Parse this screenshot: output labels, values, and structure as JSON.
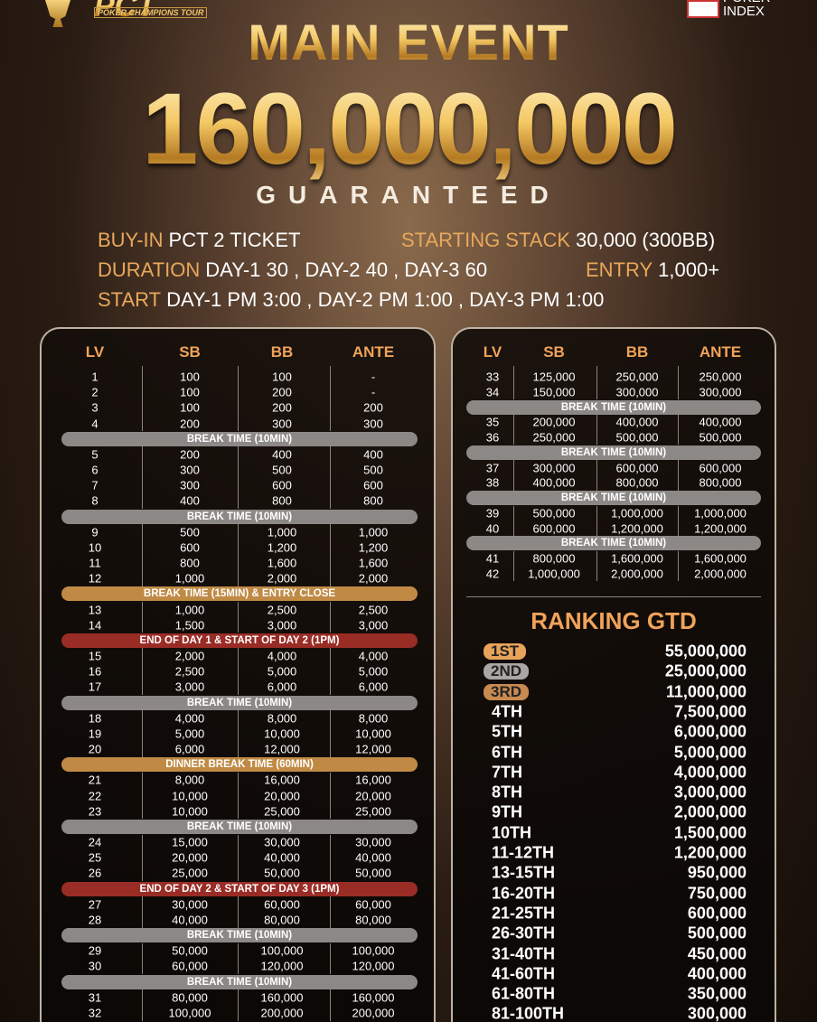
{
  "header": {
    "logo_left": "PCT",
    "logo_left_sub": "POKER CHAMPIONS TOUR",
    "logo_right": "POKER INDEX",
    "title": "MAIN EVENT",
    "amount": "160,000,000",
    "subtitle": "GUARANTEED"
  },
  "info": [
    {
      "label": "BUY-IN",
      "value": "PCT 2 TICKET"
    },
    {
      "label": "STARTING STACK",
      "value": "30,000 (300BB)"
    },
    {
      "label": "DURATION",
      "value": "DAY-1 30 , DAY-2 40 , DAY-3 60"
    },
    {
      "label": "ENTRY",
      "value": "1,000+"
    },
    {
      "label": "START",
      "value": "DAY-1 PM 3:00 , DAY-2 PM 1:00 , DAY-3 PM 1:00"
    }
  ],
  "left_table": {
    "columns": [
      "LV",
      "SB",
      "BB",
      "ANTE"
    ],
    "rows": [
      [
        "1",
        "100",
        "100",
        "-"
      ],
      [
        "2",
        "100",
        "200",
        "-"
      ],
      [
        "3",
        "100",
        "200",
        "200"
      ],
      [
        "4",
        "200",
        "300",
        "300"
      ],
      {
        "text": "BREAK TIME (10MIN)",
        "color": "#8c8885"
      },
      [
        "5",
        "200",
        "400",
        "400"
      ],
      [
        "6",
        "300",
        "500",
        "500"
      ],
      [
        "7",
        "300",
        "600",
        "600"
      ],
      [
        "8",
        "400",
        "800",
        "800"
      ],
      {
        "text": "BREAK TIME (10MIN)",
        "color": "#8c8885"
      },
      [
        "9",
        "500",
        "1,000",
        "1,000"
      ],
      [
        "10",
        "600",
        "1,200",
        "1,200"
      ],
      [
        "11",
        "800",
        "1,600",
        "1,600"
      ],
      [
        "12",
        "1,000",
        "2,000",
        "2,000"
      ],
      {
        "text": "BREAK TIME (15MIN) & ENTRY CLOSE",
        "color": "#c08a45"
      },
      [
        "13",
        "1,000",
        "2,500",
        "2,500"
      ],
      [
        "14",
        "1,500",
        "3,000",
        "3,000"
      ],
      {
        "text": "END OF DAY 1 & START OF DAY 2 (1PM)",
        "color": "#9a2c26"
      },
      [
        "15",
        "2,000",
        "4,000",
        "4,000"
      ],
      [
        "16",
        "2,500",
        "5,000",
        "5,000"
      ],
      [
        "17",
        "3,000",
        "6,000",
        "6,000"
      ],
      {
        "text": "BREAK TIME (10MIN)",
        "color": "#8c8885"
      },
      [
        "18",
        "4,000",
        "8,000",
        "8,000"
      ],
      [
        "19",
        "5,000",
        "10,000",
        "10,000"
      ],
      [
        "20",
        "6,000",
        "12,000",
        "12,000"
      ],
      {
        "text": "DINNER BREAK TIME (60MIN)",
        "color": "#c08a45"
      },
      [
        "21",
        "8,000",
        "16,000",
        "16,000"
      ],
      [
        "22",
        "10,000",
        "20,000",
        "20,000"
      ],
      [
        "23",
        "10,000",
        "25,000",
        "25,000"
      ],
      {
        "text": "BREAK TIME (10MIN)",
        "color": "#8c8885"
      },
      [
        "24",
        "15,000",
        "30,000",
        "30,000"
      ],
      [
        "25",
        "20,000",
        "40,000",
        "40,000"
      ],
      [
        "26",
        "25,000",
        "50,000",
        "50,000"
      ],
      {
        "text": "END OF DAY 2 & START OF DAY 3 (1PM)",
        "color": "#9a2c26"
      },
      [
        "27",
        "30,000",
        "60,000",
        "60,000"
      ],
      [
        "28",
        "40,000",
        "80,000",
        "80,000"
      ],
      {
        "text": "BREAK TIME (10MIN)",
        "color": "#8c8885"
      },
      [
        "29",
        "50,000",
        "100,000",
        "100,000"
      ],
      [
        "30",
        "60,000",
        "120,000",
        "120,000"
      ],
      {
        "text": "BREAK TIME (10MIN)",
        "color": "#8c8885"
      },
      [
        "31",
        "80,000",
        "160,000",
        "160,000"
      ],
      [
        "32",
        "100,000",
        "200,000",
        "200,000"
      ]
    ]
  },
  "right_table": {
    "columns": [
      "LV",
      "SB",
      "BB",
      "ANTE"
    ],
    "rows": [
      [
        "33",
        "125,000",
        "250,000",
        "250,000"
      ],
      [
        "34",
        "150,000",
        "300,000",
        "300,000"
      ],
      {
        "text": "BREAK TIME (10MIN)",
        "color": "#8c8885"
      },
      [
        "35",
        "200,000",
        "400,000",
        "400,000"
      ],
      [
        "36",
        "250,000",
        "500,000",
        "500,000"
      ],
      {
        "text": "BREAK TIME (10MIN)",
        "color": "#8c8885"
      },
      [
        "37",
        "300,000",
        "600,000",
        "600,000"
      ],
      [
        "38",
        "400,000",
        "800,000",
        "800,000"
      ],
      {
        "text": "BREAK TIME (10MIN)",
        "color": "#8c8885"
      },
      [
        "39",
        "500,000",
        "1,000,000",
        "1,000,000"
      ],
      [
        "40",
        "600,000",
        "1,200,000",
        "1,200,000"
      ],
      {
        "text": "BREAK TIME (10MIN)",
        "color": "#8c8885"
      },
      [
        "41",
        "800,000",
        "1,600,000",
        "1,600,000"
      ],
      [
        "42",
        "1,000,000",
        "2,000,000",
        "2,000,000"
      ]
    ]
  },
  "ranking": {
    "title": "RANKING GTD",
    "rows": [
      [
        "1ST",
        "55,000,000"
      ],
      [
        "2ND",
        "25,000,000"
      ],
      [
        "3RD",
        "11,000,000"
      ],
      [
        "4TH",
        "7,500,000"
      ],
      [
        "5TH",
        "6,000,000"
      ],
      [
        "6TH",
        "5,000,000"
      ],
      [
        "7TH",
        "4,000,000"
      ],
      [
        "8TH",
        "3,000,000"
      ],
      [
        "9TH",
        "2,000,000"
      ],
      [
        "10TH",
        "1,500,000"
      ],
      [
        "11-12TH",
        "1,200,000"
      ],
      [
        "13-15TH",
        "950,000"
      ],
      [
        "16-20TH",
        "750,000"
      ],
      [
        "21-25TH",
        "600,000"
      ],
      [
        "26-30TH",
        "500,000"
      ],
      [
        "31-40TH",
        "450,000"
      ],
      [
        "41-60TH",
        "400,000"
      ],
      [
        "61-80TH",
        "350,000"
      ],
      [
        "81-100TH",
        "300,000"
      ]
    ]
  }
}
